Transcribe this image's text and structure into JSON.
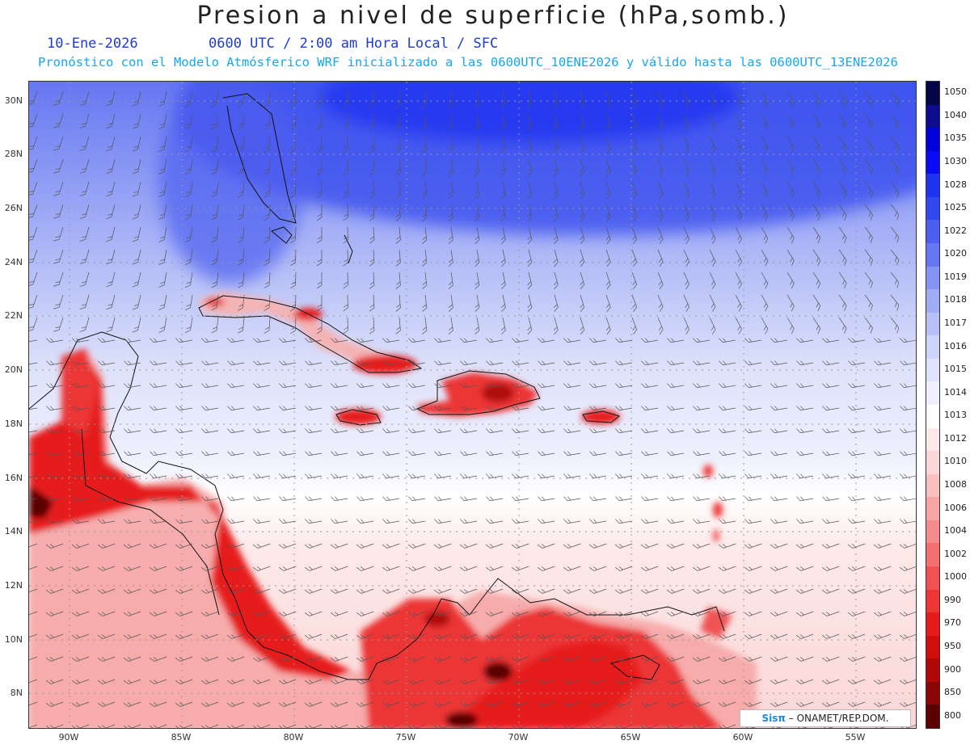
{
  "header": {
    "title": "Presion a nivel de superficie (hPa,somb.)",
    "date": "10-Ene-2026",
    "time_info": "0600 UTC / 2:00 am Hora Local / SFC",
    "forecast_info": "Pronóstico con el Modelo Atmósferico WRF inicializado a las 0600UTC_10ENE2026 y válido hasta las  0600UTC_13ENE2026"
  },
  "axes": {
    "lat_labels": [
      "30N",
      "28N",
      "26N",
      "24N",
      "22N",
      "20N",
      "18N",
      "16N",
      "14N",
      "12N",
      "10N",
      "8N"
    ],
    "lon_labels": [
      "90W",
      "85W",
      "80W",
      "75W",
      "70W",
      "65W",
      "60W",
      "55W"
    ]
  },
  "colorbar": {
    "labels": [
      "1050",
      "1040",
      "1035",
      "1030",
      "1028",
      "1025",
      "1022",
      "1020",
      "1019",
      "1018",
      "1017",
      "1016",
      "1015",
      "1014",
      "1013",
      "1012",
      "1010",
      "1008",
      "1006",
      "1004",
      "1002",
      "1000",
      "990",
      "970",
      "950",
      "900",
      "850",
      "800"
    ],
    "colors": [
      "#05054a",
      "#0c0c8c",
      "#0000d8",
      "#0a0af5",
      "#1f33f0",
      "#3347ee",
      "#4d5ff0",
      "#6677f2",
      "#8594f4",
      "#a0acf6",
      "#b8c1f7",
      "#cdd4f9",
      "#dfe3fb",
      "#eef0fd",
      "#ffffff",
      "#fde9e9",
      "#fbd6d6",
      "#f9c0c0",
      "#f6a6a6",
      "#f48c8c",
      "#f27070",
      "#ef5252",
      "#ec3535",
      "#e61c1c",
      "#d10e0e",
      "#b00808",
      "#8a0505",
      "#5a0202"
    ]
  },
  "credit": {
    "logo": "Sisπ",
    "text": "– ONAMET/REP.DOM."
  }
}
